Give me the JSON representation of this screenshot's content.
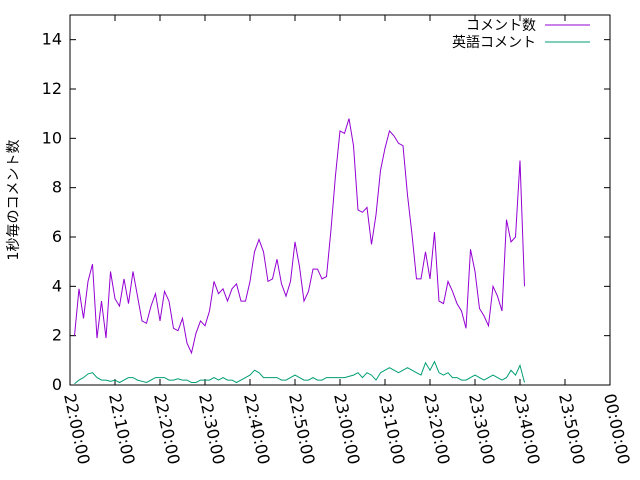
{
  "chart_data": {
    "type": "line",
    "ylabel": "1秒毎のコメント数",
    "xlabel": "",
    "ylim": [
      0,
      15
    ],
    "xlim": [
      "22:00:00",
      "00:00:00"
    ],
    "yticks": [
      0,
      2,
      4,
      6,
      8,
      10,
      12,
      14
    ],
    "xticks": [
      "22:00:00",
      "22:10:00",
      "22:20:00",
      "22:30:00",
      "22:40:00",
      "22:50:00",
      "23:00:00",
      "23:10:00",
      "23:20:00",
      "23:30:00",
      "23:40:00",
      "23:50:00",
      "00:00:00"
    ],
    "legend_position": "top-right",
    "grid": false,
    "x_step_minutes": 1,
    "series": [
      {
        "name": "コメント数",
        "color": "#9400d3",
        "values": [
          2.0,
          3.9,
          2.7,
          4.2,
          4.9,
          1.9,
          3.4,
          1.9,
          4.6,
          3.5,
          3.2,
          4.3,
          3.3,
          4.6,
          3.6,
          2.6,
          2.5,
          3.2,
          3.7,
          2.6,
          3.8,
          3.4,
          2.3,
          2.2,
          2.7,
          1.7,
          1.3,
          2.1,
          2.6,
          2.4,
          3.0,
          4.2,
          3.7,
          3.9,
          3.4,
          3.9,
          4.1,
          3.4,
          3.4,
          4.2,
          5.4,
          5.9,
          5.4,
          4.2,
          4.3,
          5.1,
          4.1,
          3.6,
          4.2,
          5.8,
          4.8,
          3.4,
          3.8,
          4.7,
          4.7,
          4.3,
          4.4,
          6.3,
          8.5,
          10.3,
          10.2,
          10.8,
          9.7,
          7.1,
          7.0,
          7.2,
          5.7,
          6.9,
          8.7,
          9.6,
          10.3,
          10.1,
          9.8,
          9.7,
          7.7,
          6.1,
          4.3,
          4.3,
          5.4,
          4.3,
          6.2,
          3.4,
          3.3,
          4.2,
          3.8,
          3.3,
          3.0,
          2.3,
          5.5,
          4.6,
          3.1,
          2.8,
          2.4,
          4.0,
          3.6,
          3.0,
          6.7,
          5.8,
          6.0,
          9.1,
          4.0
        ]
      },
      {
        "name": "英語コメント",
        "color": "#009e73",
        "values": [
          0.05,
          0.2,
          0.3,
          0.45,
          0.5,
          0.3,
          0.2,
          0.2,
          0.15,
          0.2,
          0.1,
          0.2,
          0.3,
          0.3,
          0.2,
          0.15,
          0.1,
          0.2,
          0.3,
          0.3,
          0.3,
          0.2,
          0.2,
          0.25,
          0.2,
          0.2,
          0.1,
          0.1,
          0.2,
          0.2,
          0.2,
          0.3,
          0.2,
          0.3,
          0.2,
          0.2,
          0.1,
          0.2,
          0.3,
          0.4,
          0.6,
          0.5,
          0.3,
          0.3,
          0.3,
          0.3,
          0.2,
          0.2,
          0.3,
          0.4,
          0.3,
          0.2,
          0.2,
          0.3,
          0.2,
          0.2,
          0.3,
          0.3,
          0.3,
          0.3,
          0.3,
          0.35,
          0.4,
          0.5,
          0.3,
          0.5,
          0.4,
          0.2,
          0.5,
          0.6,
          0.7,
          0.6,
          0.5,
          0.6,
          0.7,
          0.6,
          0.5,
          0.4,
          0.9,
          0.6,
          0.95,
          0.5,
          0.4,
          0.5,
          0.3,
          0.3,
          0.2,
          0.2,
          0.3,
          0.4,
          0.3,
          0.2,
          0.3,
          0.4,
          0.3,
          0.2,
          0.3,
          0.6,
          0.4,
          0.8,
          0.1
        ]
      }
    ]
  }
}
